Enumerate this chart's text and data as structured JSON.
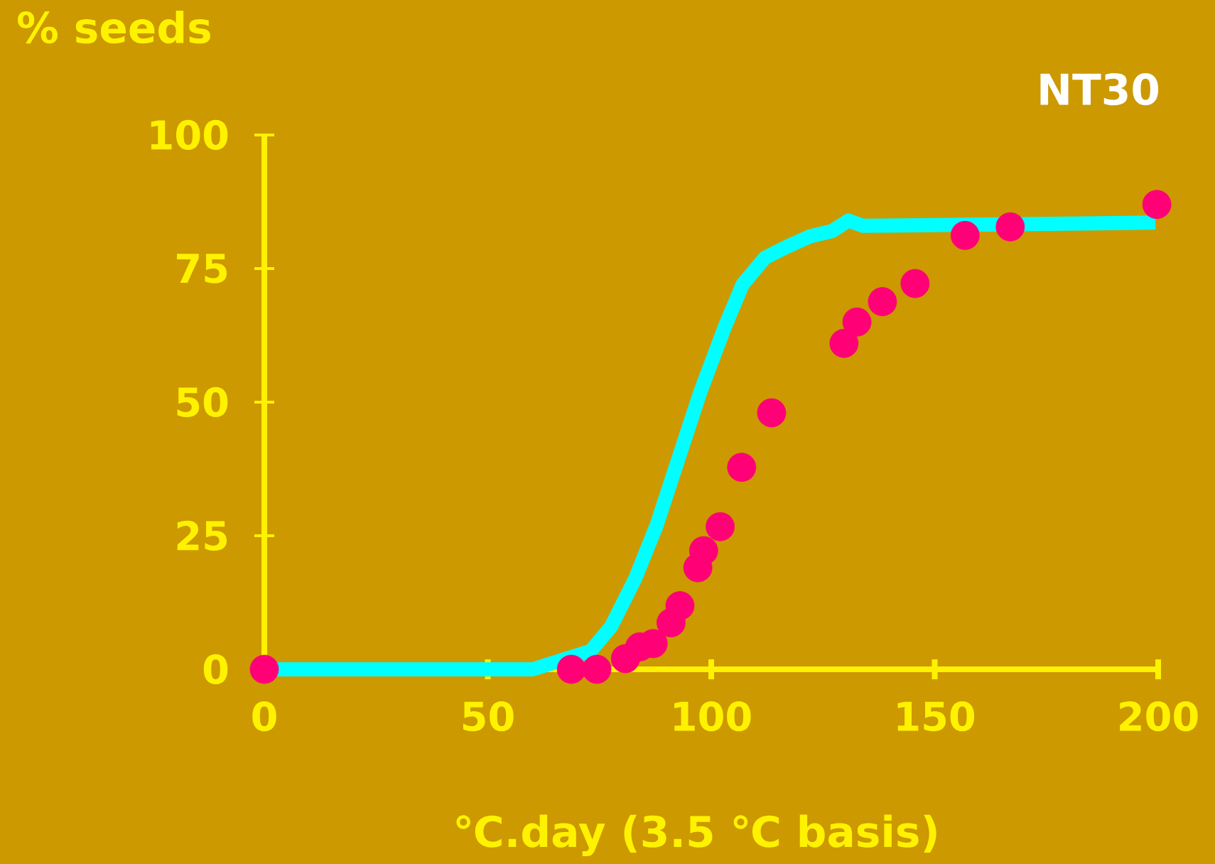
{
  "chart_data": {
    "type": "scatter",
    "title": "NT30",
    "xlabel": "℃.day (3.5 ℃ basis)",
    "ylabel": "% seeds",
    "xlim": [
      0,
      200
    ],
    "ylim": [
      0,
      100
    ],
    "xticks": [
      0,
      50,
      100,
      150,
      200
    ],
    "yticks": [
      0,
      25,
      50,
      75,
      100
    ],
    "grid": false,
    "series": [
      {
        "type": "line",
        "color": "#00ffff",
        "line_style": "solid",
        "marker": "none",
        "x": [
          0,
          60,
          73,
          77.6,
          83,
          87.8,
          92.5,
          97.6,
          103,
          107,
          112,
          116.7,
          122,
          127,
          130.7,
          134,
          199.4
        ],
        "values": [
          0,
          0,
          3.4,
          8,
          17,
          27,
          39,
          52,
          64,
          72,
          77,
          79,
          81,
          82,
          84,
          83,
          83.6
        ]
      },
      {
        "color": "#ff0077",
        "marker": "circle",
        "x": [
          0,
          68.7,
          74.4,
          80.8,
          84,
          87,
          91,
          93,
          97,
          98.3,
          102,
          106.8,
          113.5,
          129.7,
          132.6,
          138.3,
          145.6,
          156.8,
          166.9,
          199.7
        ],
        "values": [
          0,
          0,
          0,
          2,
          4.2,
          4.8,
          8.7,
          11.9,
          19,
          22.2,
          26.7,
          37.8,
          48,
          61,
          65,
          68.8,
          72.2,
          81.2,
          82.8,
          87
        ]
      }
    ]
  }
}
